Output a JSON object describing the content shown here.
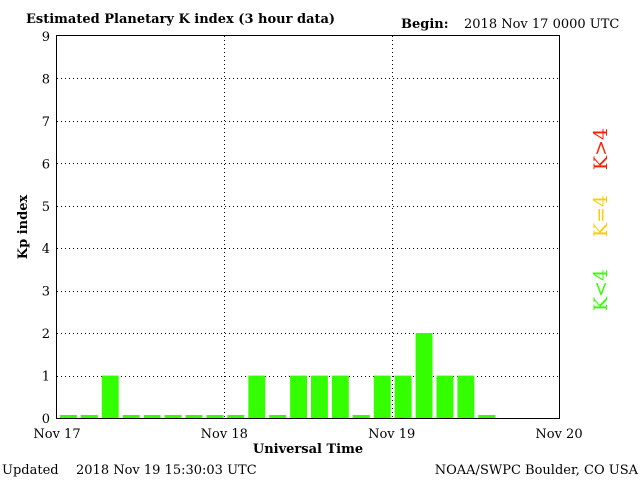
{
  "header": {
    "title": "Estimated Planetary K index (3 hour data)",
    "begin_label": "Begin:",
    "begin_value": "2018 Nov 17 0000 UTC"
  },
  "footer": {
    "updated_label": "Updated",
    "updated_value": "2018 Nov 19 15:30:03 UTC",
    "credit": "NOAA/SWPC Boulder, CO USA"
  },
  "legend": [
    {
      "label": "K>4",
      "color": "#ff2000"
    },
    {
      "label": "K=4",
      "color": "#ffcc00"
    },
    {
      "label": "K<4",
      "color": "#33ff00"
    }
  ],
  "colors": {
    "bar": "#33ff00",
    "grid": "#000000",
    "background": "#ffffff"
  },
  "chart_data": {
    "type": "bar",
    "title": "Estimated Planetary K index (3 hour data)",
    "xlabel": "Universal Time",
    "ylabel": "Kp index",
    "ylim": [
      0,
      9
    ],
    "yticks": [
      "0",
      "1",
      "2",
      "3",
      "4",
      "5",
      "6",
      "7",
      "8",
      "9"
    ],
    "xticks": [
      "Nov 17",
      "Nov 18",
      "Nov 19",
      "Nov 20"
    ],
    "grid": "dotted, at each day boundary and each integer Kp",
    "interval_hours": 3,
    "values": [
      0,
      0,
      1,
      0,
      0,
      0,
      0,
      0,
      0,
      1,
      0,
      1,
      1,
      1,
      0,
      1,
      1,
      2,
      1,
      1,
      0
    ]
  }
}
